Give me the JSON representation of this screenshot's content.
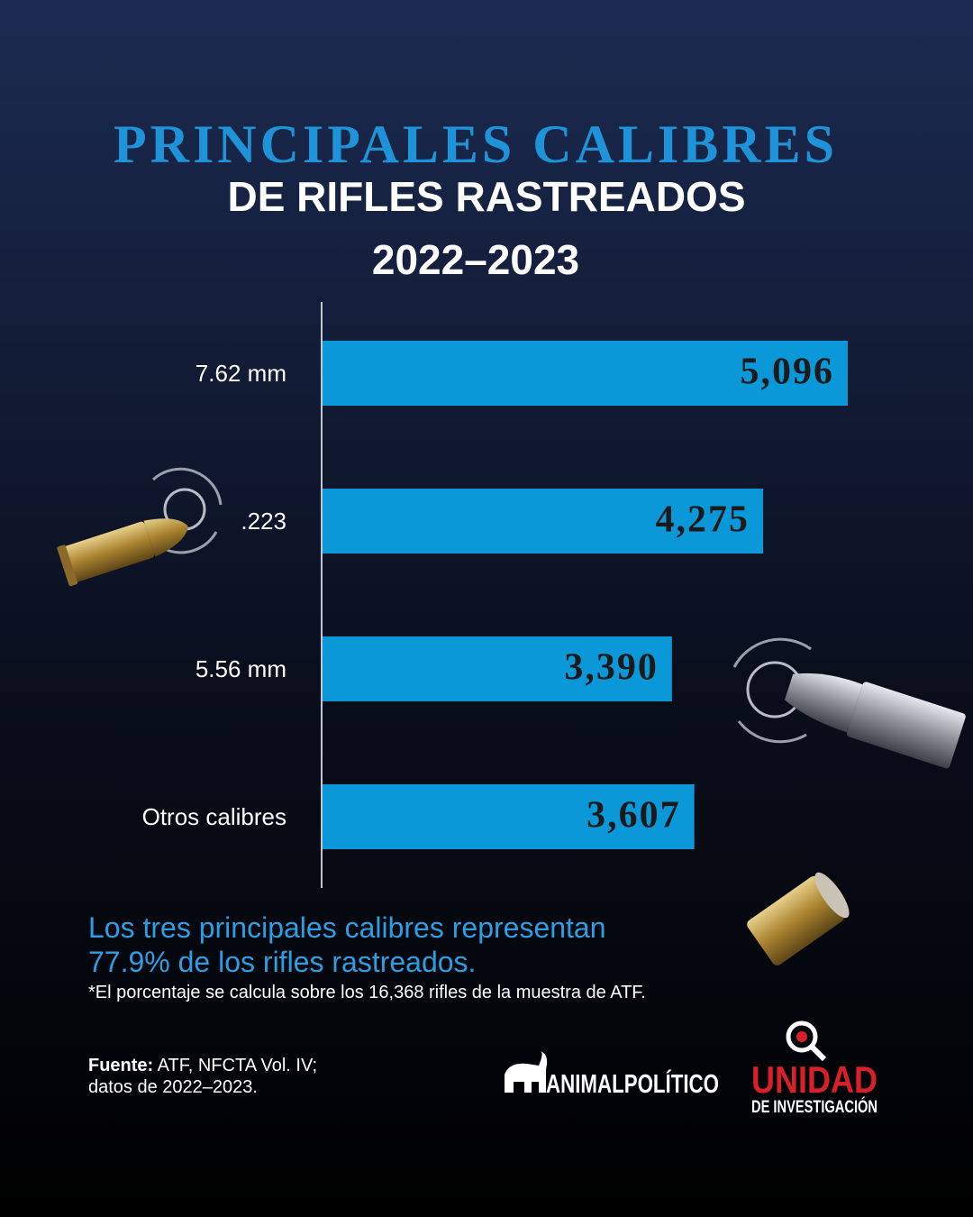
{
  "chart_data": {
    "type": "bar",
    "orientation": "horizontal",
    "title": "PRINCIPALES CALIBRES",
    "subtitle": "DE RIFLES RASTREADOS",
    "period": "2022–2023",
    "categories": [
      "7.62 mm",
      ".223",
      "5.56 mm",
      "Otros calibres"
    ],
    "values": [
      5096,
      4275,
      3390,
      3607
    ],
    "value_labels": [
      "5,096",
      "4,275",
      "3,390",
      "3,607"
    ],
    "color": "#0b98d8",
    "annotation": [
      "Los tres principales calibres representan",
      "77.9% de los rifles rastreados."
    ],
    "footnote": "*El porcentaje se calcula sobre los 16,368 rifles de la muestra de ATF."
  },
  "footer": {
    "source_label": "Fuente:",
    "source_text": [
      "ATF, NFCTA Vol. IV;",
      "datos de 2022–2023."
    ],
    "logo_animal": "ANIMALPOLÍTICO",
    "logo_unidad": "UNIDAD",
    "logo_unidad_sub": "DE INVESTIGACIÓN"
  }
}
